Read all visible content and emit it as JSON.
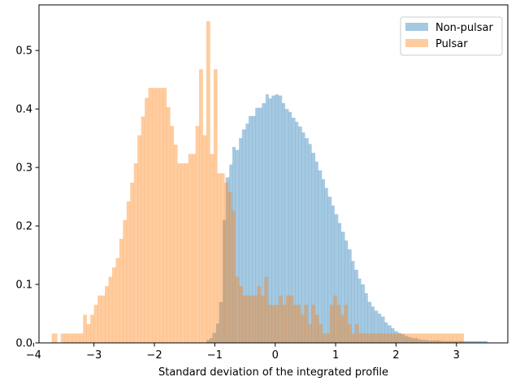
{
  "chart_data": {
    "type": "histogram",
    "title": "",
    "xlabel": "Standard deviation of the integrated profile",
    "ylabel": "",
    "xlim": [
      -3.91,
      3.85
    ],
    "ylim": [
      0,
      0.578
    ],
    "xticks": [
      -4,
      -3,
      -2,
      -1,
      0,
      1,
      2,
      3
    ],
    "xtick_labels": [
      "−4",
      "−3",
      "−2",
      "−1",
      "0",
      "1",
      "2",
      "3"
    ],
    "yticks": [
      0.0,
      0.1,
      0.2,
      0.3,
      0.4,
      0.5
    ],
    "ytick_labels": [
      "0.0",
      "0.1",
      "0.2",
      "0.3",
      "0.4",
      "0.5"
    ],
    "grid": false,
    "legend_position": "upper right",
    "series": [
      {
        "name": "Non-pulsar",
        "color": "#1f77b4",
        "alpha": 0.4,
        "bins": [
          [
            -1.14,
            -1.09,
            0.005
          ],
          [
            -1.09,
            -1.04,
            0.008
          ],
          [
            -1.04,
            -0.98,
            0.017
          ],
          [
            -0.98,
            -0.93,
            0.033
          ],
          [
            -0.93,
            -0.87,
            0.07
          ],
          [
            -0.87,
            -0.82,
            0.21
          ],
          [
            -0.82,
            -0.76,
            0.283
          ],
          [
            -0.76,
            -0.71,
            0.305
          ],
          [
            -0.71,
            -0.66,
            0.335
          ],
          [
            -0.66,
            -0.6,
            0.33
          ],
          [
            -0.6,
            -0.55,
            0.35
          ],
          [
            -0.55,
            -0.49,
            0.365
          ],
          [
            -0.49,
            -0.44,
            0.375
          ],
          [
            -0.44,
            -0.38,
            0.388
          ],
          [
            -0.38,
            -0.33,
            0.388
          ],
          [
            -0.33,
            -0.27,
            0.402
          ],
          [
            -0.27,
            -0.22,
            0.402
          ],
          [
            -0.22,
            -0.16,
            0.41
          ],
          [
            -0.16,
            -0.11,
            0.425
          ],
          [
            -0.11,
            -0.06,
            0.418
          ],
          [
            -0.06,
            0.0,
            0.423
          ],
          [
            0.0,
            0.05,
            0.425
          ],
          [
            0.05,
            0.11,
            0.423
          ],
          [
            0.11,
            0.16,
            0.41
          ],
          [
            0.16,
            0.22,
            0.4
          ],
          [
            0.22,
            0.27,
            0.395
          ],
          [
            0.27,
            0.33,
            0.385
          ],
          [
            0.33,
            0.38,
            0.378
          ],
          [
            0.38,
            0.44,
            0.37
          ],
          [
            0.44,
            0.49,
            0.36
          ],
          [
            0.49,
            0.55,
            0.35
          ],
          [
            0.55,
            0.6,
            0.34
          ],
          [
            0.6,
            0.66,
            0.325
          ],
          [
            0.66,
            0.71,
            0.31
          ],
          [
            0.71,
            0.77,
            0.295
          ],
          [
            0.77,
            0.82,
            0.28
          ],
          [
            0.82,
            0.87,
            0.265
          ],
          [
            0.87,
            0.93,
            0.25
          ],
          [
            0.93,
            0.98,
            0.235
          ],
          [
            0.98,
            1.04,
            0.22
          ],
          [
            1.04,
            1.09,
            0.205
          ],
          [
            1.09,
            1.15,
            0.19
          ],
          [
            1.15,
            1.2,
            0.175
          ],
          [
            1.2,
            1.26,
            0.16
          ],
          [
            1.26,
            1.31,
            0.14
          ],
          [
            1.31,
            1.37,
            0.125
          ],
          [
            1.37,
            1.42,
            0.11
          ],
          [
            1.42,
            1.48,
            0.1
          ],
          [
            1.48,
            1.53,
            0.085
          ],
          [
            1.53,
            1.59,
            0.07
          ],
          [
            1.59,
            1.64,
            0.062
          ],
          [
            1.64,
            1.7,
            0.055
          ],
          [
            1.7,
            1.75,
            0.05
          ],
          [
            1.75,
            1.81,
            0.045
          ],
          [
            1.81,
            1.86,
            0.035
          ],
          [
            1.86,
            1.92,
            0.03
          ],
          [
            1.92,
            1.97,
            0.025
          ],
          [
            1.97,
            2.03,
            0.02
          ],
          [
            2.03,
            2.08,
            0.017
          ],
          [
            2.08,
            2.14,
            0.015
          ],
          [
            2.14,
            2.19,
            0.012
          ],
          [
            2.19,
            2.25,
            0.01
          ],
          [
            2.25,
            2.3,
            0.008
          ],
          [
            2.3,
            2.36,
            0.008
          ],
          [
            2.36,
            2.41,
            0.006
          ],
          [
            2.41,
            2.47,
            0.005
          ],
          [
            2.47,
            2.52,
            0.005
          ],
          [
            2.52,
            2.58,
            0.004
          ],
          [
            2.58,
            2.63,
            0.004
          ],
          [
            2.63,
            2.69,
            0.004
          ],
          [
            2.69,
            2.74,
            0.004
          ],
          [
            2.74,
            2.8,
            0.003
          ],
          [
            2.8,
            2.85,
            0.003
          ],
          [
            2.85,
            2.91,
            0.003
          ],
          [
            2.91,
            2.96,
            0.003
          ],
          [
            2.96,
            3.02,
            0.003
          ],
          [
            3.02,
            3.07,
            0.003
          ],
          [
            3.07,
            3.13,
            0.003
          ],
          [
            3.13,
            3.18,
            0.003
          ],
          [
            3.18,
            3.24,
            0.003
          ],
          [
            3.24,
            3.29,
            0.003
          ],
          [
            3.29,
            3.35,
            0.003
          ],
          [
            3.35,
            3.4,
            0.003
          ],
          [
            3.4,
            3.46,
            0.003
          ],
          [
            3.46,
            3.51,
            0.003
          ]
        ]
      },
      {
        "name": "Pulsar",
        "color": "#ff7f0e",
        "alpha": 0.4,
        "bins": [
          [
            -3.7,
            -3.61,
            0.016
          ],
          [
            -3.55,
            -3.49,
            0.016
          ],
          [
            -3.49,
            -3.43,
            0.016
          ],
          [
            -3.43,
            -3.36,
            0.016
          ],
          [
            -3.36,
            -3.3,
            0.016
          ],
          [
            -3.3,
            -3.24,
            0.016
          ],
          [
            -3.24,
            -3.18,
            0.016
          ],
          [
            -3.18,
            -3.12,
            0.048
          ],
          [
            -3.12,
            -3.06,
            0.032
          ],
          [
            -3.06,
            -3.0,
            0.048
          ],
          [
            -3.0,
            -2.94,
            0.065
          ],
          [
            -2.94,
            -2.88,
            0.081
          ],
          [
            -2.88,
            -2.82,
            0.081
          ],
          [
            -2.82,
            -2.76,
            0.097
          ],
          [
            -2.76,
            -2.7,
            0.113
          ],
          [
            -2.7,
            -2.64,
            0.129
          ],
          [
            -2.64,
            -2.58,
            0.145
          ],
          [
            -2.58,
            -2.52,
            0.178
          ],
          [
            -2.52,
            -2.46,
            0.21
          ],
          [
            -2.46,
            -2.4,
            0.242
          ],
          [
            -2.4,
            -2.34,
            0.274
          ],
          [
            -2.34,
            -2.28,
            0.307
          ],
          [
            -2.28,
            -2.22,
            0.355
          ],
          [
            -2.22,
            -2.16,
            0.387
          ],
          [
            -2.16,
            -2.1,
            0.419
          ],
          [
            -2.1,
            -2.04,
            0.436
          ],
          [
            -2.04,
            -1.98,
            0.436
          ],
          [
            -1.98,
            -1.92,
            0.436
          ],
          [
            -1.92,
            -1.86,
            0.436
          ],
          [
            -1.86,
            -1.8,
            0.436
          ],
          [
            -1.8,
            -1.74,
            0.403
          ],
          [
            -1.74,
            -1.68,
            0.371
          ],
          [
            -1.68,
            -1.62,
            0.339
          ],
          [
            -1.62,
            -1.56,
            0.307
          ],
          [
            -1.56,
            -1.5,
            0.307
          ],
          [
            -1.5,
            -1.44,
            0.307
          ],
          [
            -1.44,
            -1.38,
            0.323
          ],
          [
            -1.38,
            -1.32,
            0.323
          ],
          [
            -1.32,
            -1.26,
            0.371
          ],
          [
            -1.26,
            -1.2,
            0.468
          ],
          [
            -1.2,
            -1.14,
            0.355
          ],
          [
            -1.14,
            -1.08,
            0.55
          ],
          [
            -1.08,
            -1.02,
            0.323
          ],
          [
            -1.02,
            -0.96,
            0.468
          ],
          [
            -0.96,
            -0.9,
            0.29
          ],
          [
            -0.9,
            -0.84,
            0.29
          ],
          [
            -0.84,
            -0.78,
            0.274
          ],
          [
            -0.78,
            -0.72,
            0.258
          ],
          [
            -0.72,
            -0.66,
            0.226
          ],
          [
            -0.66,
            -0.6,
            0.113
          ],
          [
            -0.6,
            -0.54,
            0.097
          ],
          [
            -0.54,
            -0.48,
            0.081
          ],
          [
            -0.48,
            -0.42,
            0.081
          ],
          [
            -0.42,
            -0.36,
            0.081
          ],
          [
            -0.36,
            -0.3,
            0.081
          ],
          [
            -0.3,
            -0.24,
            0.097
          ],
          [
            -0.24,
            -0.18,
            0.081
          ],
          [
            -0.18,
            -0.12,
            0.113
          ],
          [
            -0.12,
            -0.06,
            0.065
          ],
          [
            -0.06,
            0.0,
            0.065
          ],
          [
            0.0,
            0.06,
            0.065
          ],
          [
            0.06,
            0.12,
            0.081
          ],
          [
            0.12,
            0.18,
            0.065
          ],
          [
            0.18,
            0.24,
            0.081
          ],
          [
            0.24,
            0.3,
            0.081
          ],
          [
            0.3,
            0.36,
            0.065
          ],
          [
            0.36,
            0.42,
            0.065
          ],
          [
            0.42,
            0.48,
            0.048
          ],
          [
            0.48,
            0.54,
            0.065
          ],
          [
            0.54,
            0.6,
            0.032
          ],
          [
            0.6,
            0.66,
            0.065
          ],
          [
            0.66,
            0.72,
            0.048
          ],
          [
            0.72,
            0.78,
            0.032
          ],
          [
            0.78,
            0.84,
            0.016
          ],
          [
            0.84,
            0.9,
            0.016
          ],
          [
            0.9,
            0.96,
            0.065
          ],
          [
            0.96,
            1.02,
            0.081
          ],
          [
            1.02,
            1.08,
            0.065
          ],
          [
            1.08,
            1.14,
            0.048
          ],
          [
            1.14,
            1.2,
            0.065
          ],
          [
            1.2,
            1.26,
            0.032
          ],
          [
            1.26,
            1.32,
            0.016
          ],
          [
            1.32,
            1.38,
            0.032
          ],
          [
            1.38,
            1.44,
            0.016
          ],
          [
            1.44,
            1.5,
            0.016
          ],
          [
            1.5,
            1.56,
            0.016
          ],
          [
            1.56,
            1.62,
            0.016
          ],
          [
            1.62,
            1.68,
            0.016
          ],
          [
            1.68,
            1.74,
            0.016
          ],
          [
            1.74,
            1.8,
            0.016
          ],
          [
            1.8,
            1.86,
            0.016
          ],
          [
            1.86,
            1.92,
            0.016
          ],
          [
            1.92,
            1.98,
            0.016
          ],
          [
            1.98,
            2.04,
            0.016
          ],
          [
            2.04,
            2.1,
            0.016
          ],
          [
            2.1,
            2.16,
            0.016
          ],
          [
            2.16,
            2.22,
            0.016
          ],
          [
            2.22,
            2.28,
            0.016
          ],
          [
            2.28,
            2.34,
            0.016
          ],
          [
            2.34,
            2.4,
            0.016
          ],
          [
            2.4,
            2.46,
            0.016
          ],
          [
            2.46,
            2.52,
            0.016
          ],
          [
            2.52,
            2.58,
            0.016
          ],
          [
            2.58,
            2.64,
            0.016
          ],
          [
            2.64,
            2.7,
            0.016
          ],
          [
            2.7,
            2.76,
            0.016
          ],
          [
            2.76,
            2.82,
            0.016
          ],
          [
            2.82,
            2.88,
            0.016
          ],
          [
            2.88,
            2.94,
            0.016
          ],
          [
            2.94,
            3.0,
            0.016
          ],
          [
            3.0,
            3.06,
            0.016
          ],
          [
            3.06,
            3.12,
            0.016
          ]
        ]
      }
    ]
  }
}
